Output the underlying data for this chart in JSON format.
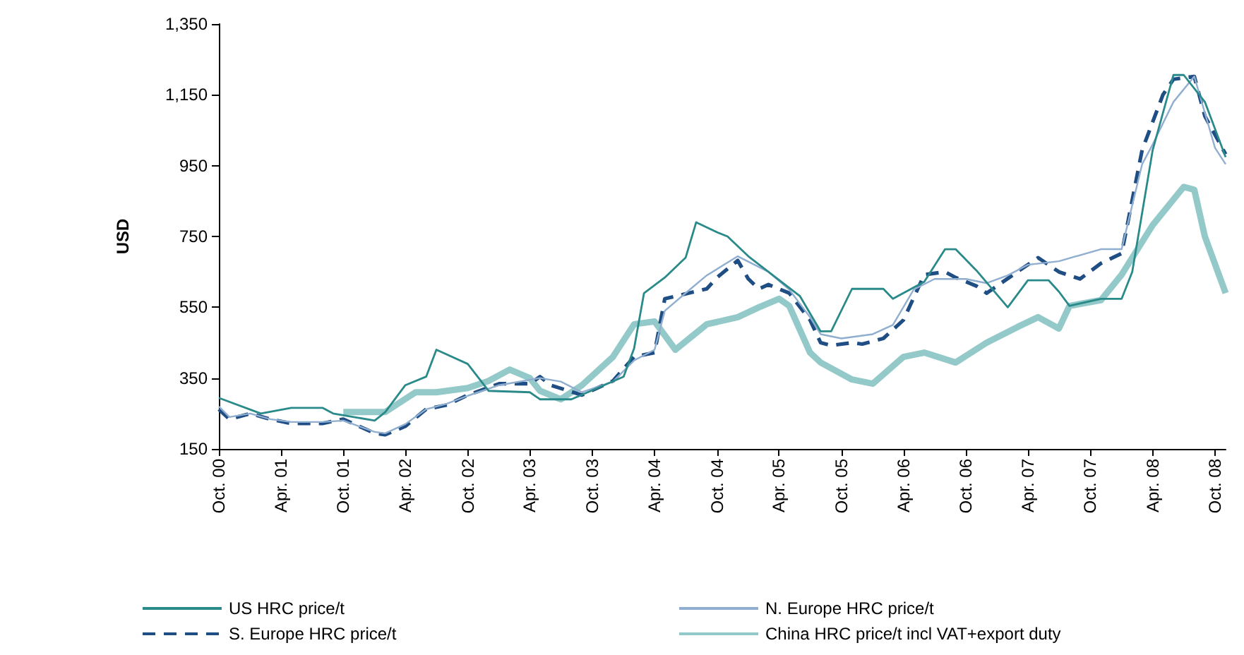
{
  "chart_data": {
    "type": "line",
    "ylabel": "USD",
    "xlim": [
      "2000-10",
      "2008-11"
    ],
    "xticks": [
      {
        "value": "2000-10",
        "label": "Oct. 00"
      },
      {
        "value": "2001-04",
        "label": "Apr. 01"
      },
      {
        "value": "2001-10",
        "label": "Oct. 01"
      },
      {
        "value": "2002-04",
        "label": "Apr. 02"
      },
      {
        "value": "2002-10",
        "label": "Oct. 02"
      },
      {
        "value": "2003-04",
        "label": "Apr. 03"
      },
      {
        "value": "2003-10",
        "label": "Oct. 03"
      },
      {
        "value": "2004-04",
        "label": "Apr. 04"
      },
      {
        "value": "2004-10",
        "label": "Oct. 04"
      },
      {
        "value": "2005-04",
        "label": "Apr. 05"
      },
      {
        "value": "2005-10",
        "label": "Oct. 05"
      },
      {
        "value": "2006-04",
        "label": "Apr. 06"
      },
      {
        "value": "2006-10",
        "label": "Oct. 06"
      },
      {
        "value": "2007-04",
        "label": "Apr. 07"
      },
      {
        "value": "2007-10",
        "label": "Oct. 07"
      },
      {
        "value": "2008-04",
        "label": "Apr. 08"
      },
      {
        "value": "2008-10",
        "label": "Oct. 08"
      }
    ],
    "ylim": [
      150,
      1350
    ],
    "yticks": [
      150,
      350,
      550,
      750,
      950,
      {
        "value": 1150,
        "label": "1,150"
      },
      {
        "value": 1350,
        "label": "1,350"
      }
    ],
    "grid": false,
    "legend": "bottom",
    "marker": "none",
    "series": [
      {
        "name": "US HRC price/t",
        "color": "#2a8a8a",
        "line_style": "solid",
        "x": [
          "2000-10",
          "2001-02",
          "2001-05",
          "2001-08",
          "2001-09",
          "2002-01",
          "2002-02",
          "2002-04",
          "2002-06",
          "2002-07",
          "2002-10",
          "2002-12",
          "2003-04",
          "2003-05",
          "2003-08",
          "2004-01",
          "2004-02",
          "2004-03",
          "2004-05",
          "2004-07",
          "2004-08",
          "2004-10",
          "2004-11",
          "2005-01",
          "2005-03",
          "2005-06",
          "2005-08",
          "2005-09",
          "2005-11",
          "2006-02",
          "2006-03",
          "2006-06",
          "2006-08",
          "2006-09",
          "2006-11",
          "2007-02",
          "2007-04",
          "2007-06",
          "2007-07",
          "2007-08",
          "2007-11",
          "2008-01",
          "2008-02",
          "2008-04",
          "2008-06",
          "2008-07",
          "2008-09",
          "2008-11"
        ],
        "values": [
          294,
          250,
          266,
          266,
          250,
          230,
          254,
          330,
          354,
          430,
          390,
          314,
          310,
          290,
          290,
          354,
          434,
          590,
          634,
          690,
          790,
          762,
          750,
          694,
          650,
          582,
          482,
          482,
          602,
          602,
          574,
          622,
          714,
          714,
          654,
          550,
          626,
          626,
          594,
          554,
          574,
          574,
          650,
          994,
          1206,
          1206,
          1130,
          974
        ]
      },
      {
        "name": "N. Europe HRC price/t",
        "color": "#8faed0",
        "line_style": "solid",
        "x": [
          "2000-10",
          "2000-11",
          "2001-01",
          "2001-03",
          "2001-05",
          "2001-08",
          "2001-10",
          "2002-01",
          "2002-02",
          "2002-04",
          "2002-06",
          "2002-08",
          "2002-10",
          "2003-01",
          "2003-05",
          "2003-07",
          "2003-09",
          "2003-12",
          "2004-02",
          "2004-04",
          "2004-05",
          "2004-07",
          "2004-09",
          "2004-12",
          "2005-03",
          "2005-05",
          "2005-07",
          "2005-08",
          "2005-10",
          "2006-01",
          "2006-03",
          "2006-05",
          "2006-07",
          "2006-10",
          "2006-12",
          "2007-02",
          "2007-04",
          "2007-07",
          "2007-11",
          "2008-01",
          "2008-03",
          "2008-04",
          "2008-06",
          "2008-08",
          "2008-10",
          "2008-11"
        ],
        "values": [
          270,
          240,
          250,
          234,
          226,
          226,
          230,
          198,
          194,
          220,
          262,
          278,
          300,
          330,
          350,
          340,
          310,
          340,
          400,
          430,
          540,
          590,
          640,
          694,
          650,
          600,
          522,
          474,
          462,
          474,
          500,
          600,
          630,
          630,
          618,
          640,
          670,
          680,
          714,
          714,
          954,
          1010,
          1130,
          1202,
          1000,
          954
        ]
      },
      {
        "name": "S. Europe HRC price/t",
        "color": "#1f4e85",
        "line_style": "dashed",
        "x": [
          "2000-10",
          "2000-11",
          "2001-01",
          "2001-03",
          "2001-05",
          "2001-08",
          "2001-10",
          "2002-01",
          "2002-02",
          "2002-04",
          "2002-06",
          "2002-08",
          "2002-10",
          "2003-01",
          "2003-04",
          "2003-05",
          "2003-06",
          "2003-09",
          "2003-12",
          "2004-02",
          "2004-04",
          "2004-05",
          "2004-09",
          "2004-10",
          "2004-12",
          "2005-01",
          "2005-02",
          "2005-03",
          "2005-05",
          "2005-07",
          "2005-08",
          "2005-09",
          "2005-11",
          "2005-12",
          "2006-02",
          "2006-04",
          "2006-06",
          "2006-08",
          "2006-09",
          "2006-11",
          "2006-12",
          "2007-03",
          "2007-05",
          "2007-07",
          "2007-09",
          "2007-11",
          "2008-01",
          "2008-03",
          "2008-05",
          "2008-06",
          "2008-08",
          "2008-09",
          "2008-11"
        ],
        "values": [
          262,
          234,
          250,
          234,
          222,
          222,
          234,
          194,
          190,
          214,
          262,
          274,
          302,
          334,
          334,
          354,
          330,
          302,
          342,
          410,
          422,
          574,
          602,
          634,
          682,
          630,
          602,
          614,
          590,
          514,
          450,
          442,
          450,
          446,
          462,
          514,
          642,
          650,
          634,
          610,
          590,
          650,
          690,
          650,
          630,
          674,
          702,
          994,
          1150,
          1194,
          1202,
          1090,
          982
        ]
      },
      {
        "name": "China HRC price/t incl VAT+export duty",
        "color": "#93c9c9",
        "line_style": "solid",
        "x": [
          "2001-10",
          "2002-02",
          "2002-05",
          "2002-07",
          "2002-10",
          "2002-12",
          "2003-02",
          "2003-04",
          "2003-05",
          "2003-07",
          "2003-09",
          "2003-12",
          "2004-02",
          "2004-04",
          "2004-06",
          "2004-09",
          "2004-12",
          "2005-02",
          "2005-04",
          "2005-05",
          "2005-07",
          "2005-08",
          "2005-11",
          "2006-01",
          "2006-04",
          "2006-06",
          "2006-09",
          "2006-12",
          "2007-03",
          "2007-05",
          "2007-07",
          "2007-08",
          "2007-11",
          "2008-01",
          "2008-04",
          "2008-07",
          "2008-08",
          "2008-09",
          "2008-11"
        ],
        "values": [
          254,
          254,
          310,
          310,
          322,
          342,
          374,
          350,
          314,
          290,
          330,
          410,
          502,
          510,
          430,
          502,
          522,
          550,
          574,
          554,
          422,
          394,
          346,
          334,
          410,
          422,
          394,
          450,
          494,
          522,
          490,
          554,
          570,
          642,
          782,
          890,
          882,
          750,
          590
        ]
      }
    ]
  }
}
